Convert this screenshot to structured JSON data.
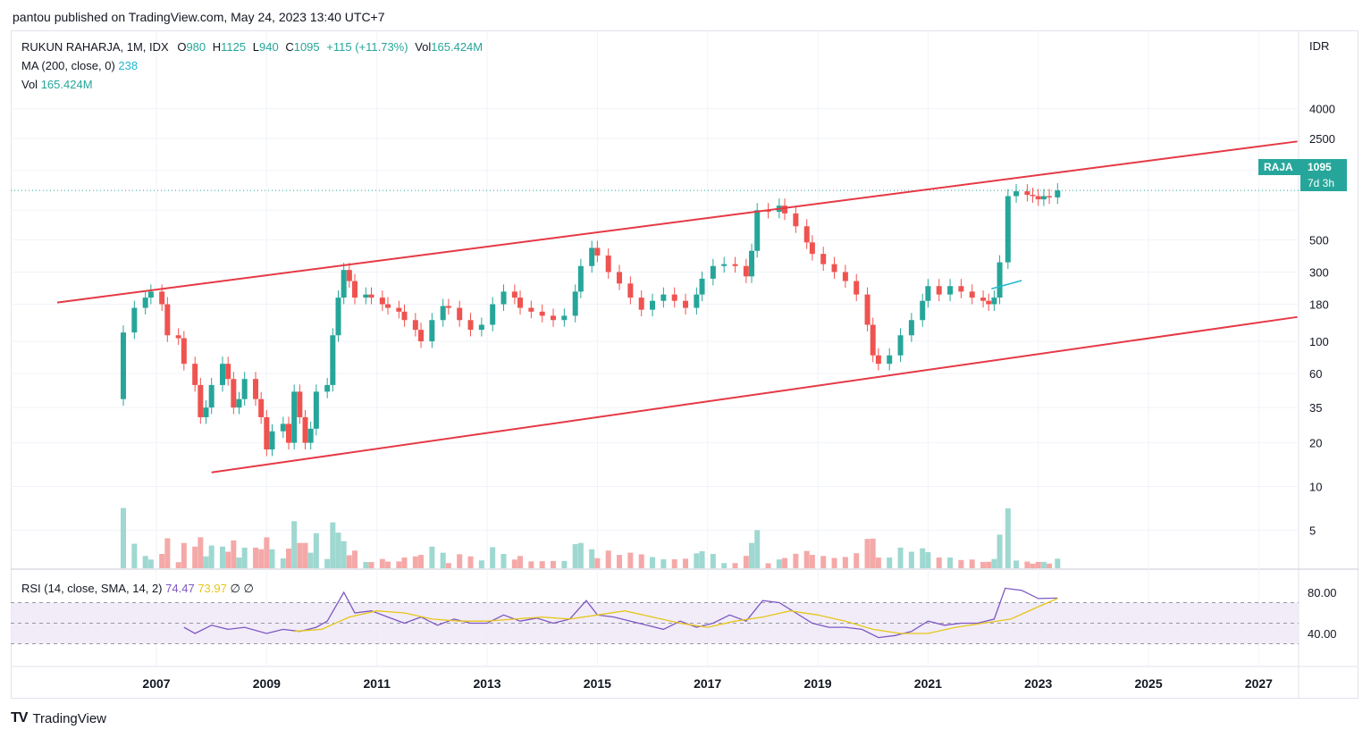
{
  "header": {
    "publisher_line": "pantou published on TradingView.com, May 24, 2023 13:40 UTC+7"
  },
  "legend": {
    "symbol": "RUKUN RAHARJA, 1M, IDX",
    "o_label": "O",
    "o_value": "980",
    "h_label": "H",
    "h_value": "1125",
    "l_label": "L",
    "l_value": "940",
    "c_label": "C",
    "c_value": "1095",
    "change": "+115 (+11.73%)",
    "vol_label": "Vol",
    "vol_value": "165.424M",
    "ma_label": "MA (200, close, 0)",
    "ma_value": "238",
    "vol_row_label": "Vol",
    "vol_row_value": "165.424M"
  },
  "rsi_legend": {
    "label": "RSI (14, close, SMA, 14, 2)",
    "rsi_value": "74.47",
    "sma_value": "73.97",
    "extra1": "∅",
    "extra2": "∅"
  },
  "price_badge": {
    "ticker": "RAJA",
    "price": "1095",
    "countdown": "7d 3h"
  },
  "footer": {
    "brand": "TradingView"
  },
  "colors": {
    "up": "#26a69a",
    "down": "#ef5350",
    "channel": "#e53945",
    "rsi": "#7e57c2",
    "rsi_sma": "#e6c619",
    "ma": "#22b8cf"
  },
  "chart_data": [
    {
      "type": "candlestick",
      "currency_label": "IDR",
      "scale": "log",
      "y_ticks": [
        4000,
        2500,
        1500,
        800,
        500,
        300,
        180,
        100,
        60,
        35,
        20,
        10,
        5
      ],
      "y_tick_labels": [
        "4000",
        "2500",
        "1500",
        "",
        "500",
        "300",
        "180",
        "100",
        "60",
        "35",
        "20",
        "10",
        "5"
      ],
      "x_ticks": [
        "2007",
        "2009",
        "2011",
        "2013",
        "2015",
        "2017",
        "2019",
        "2021",
        "2023",
        "2025",
        "2027"
      ],
      "x_tick_years": [
        2007,
        2009,
        2011,
        2013,
        2015,
        2017,
        2019,
        2021,
        2023,
        2025,
        2027
      ],
      "last_price": 1095,
      "close_series": [
        [
          2006.3,
          40
        ],
        [
          2006.4,
          115
        ],
        [
          2006.6,
          170
        ],
        [
          2006.8,
          200
        ],
        [
          2006.9,
          220
        ],
        [
          2007.1,
          180
        ],
        [
          2007.2,
          110
        ],
        [
          2007.4,
          105
        ],
        [
          2007.5,
          70
        ],
        [
          2007.7,
          50
        ],
        [
          2007.8,
          30
        ],
        [
          2007.9,
          35
        ],
        [
          2008.0,
          50
        ],
        [
          2008.2,
          70
        ],
        [
          2008.3,
          55
        ],
        [
          2008.4,
          35
        ],
        [
          2008.5,
          40
        ],
        [
          2008.6,
          55
        ],
        [
          2008.8,
          40
        ],
        [
          2008.9,
          30
        ],
        [
          2009.0,
          18
        ],
        [
          2009.1,
          24
        ],
        [
          2009.3,
          27
        ],
        [
          2009.4,
          20
        ],
        [
          2009.5,
          45
        ],
        [
          2009.6,
          30
        ],
        [
          2009.7,
          20
        ],
        [
          2009.8,
          25
        ],
        [
          2009.9,
          45
        ],
        [
          2010.1,
          50
        ],
        [
          2010.2,
          110
        ],
        [
          2010.3,
          200
        ],
        [
          2010.4,
          310
        ],
        [
          2010.5,
          260
        ],
        [
          2010.6,
          200
        ],
        [
          2010.8,
          210
        ],
        [
          2010.9,
          200
        ],
        [
          2011.1,
          180
        ],
        [
          2011.2,
          170
        ],
        [
          2011.4,
          160
        ],
        [
          2011.5,
          140
        ],
        [
          2011.7,
          120
        ],
        [
          2011.8,
          100
        ],
        [
          2012.0,
          140
        ],
        [
          2012.2,
          175
        ],
        [
          2012.3,
          170
        ],
        [
          2012.5,
          140
        ],
        [
          2012.7,
          120
        ],
        [
          2012.9,
          130
        ],
        [
          2013.1,
          180
        ],
        [
          2013.3,
          220
        ],
        [
          2013.5,
          200
        ],
        [
          2013.6,
          170
        ],
        [
          2013.8,
          160
        ],
        [
          2014.0,
          150
        ],
        [
          2014.2,
          140
        ],
        [
          2014.4,
          150
        ],
        [
          2014.6,
          220
        ],
        [
          2014.7,
          330
        ],
        [
          2014.9,
          440
        ],
        [
          2015.0,
          390
        ],
        [
          2015.2,
          300
        ],
        [
          2015.4,
          250
        ],
        [
          2015.6,
          200
        ],
        [
          2015.8,
          165
        ],
        [
          2016.0,
          190
        ],
        [
          2016.2,
          210
        ],
        [
          2016.4,
          190
        ],
        [
          2016.6,
          170
        ],
        [
          2016.8,
          210
        ],
        [
          2016.9,
          270
        ],
        [
          2017.1,
          330
        ],
        [
          2017.3,
          340
        ],
        [
          2017.5,
          330
        ],
        [
          2017.7,
          280
        ],
        [
          2017.8,
          420
        ],
        [
          2017.9,
          800
        ],
        [
          2018.1,
          780
        ],
        [
          2018.3,
          860
        ],
        [
          2018.4,
          760
        ],
        [
          2018.6,
          620
        ],
        [
          2018.8,
          480
        ],
        [
          2018.9,
          400
        ],
        [
          2019.1,
          340
        ],
        [
          2019.3,
          300
        ],
        [
          2019.5,
          260
        ],
        [
          2019.7,
          210
        ],
        [
          2019.9,
          130
        ],
        [
          2020.0,
          80
        ],
        [
          2020.1,
          70
        ],
        [
          2020.3,
          80
        ],
        [
          2020.5,
          110
        ],
        [
          2020.7,
          140
        ],
        [
          2020.9,
          190
        ],
        [
          2021.0,
          240
        ],
        [
          2021.2,
          210
        ],
        [
          2021.4,
          240
        ],
        [
          2021.6,
          220
        ],
        [
          2021.8,
          200
        ],
        [
          2022.0,
          190
        ],
        [
          2022.1,
          180
        ],
        [
          2022.2,
          200
        ],
        [
          2022.3,
          350
        ],
        [
          2022.45,
          1000
        ],
        [
          2022.6,
          1080
        ],
        [
          2022.8,
          1020
        ],
        [
          2022.9,
          1000
        ],
        [
          2023.0,
          950
        ],
        [
          2023.1,
          1000
        ],
        [
          2023.2,
          980
        ],
        [
          2023.35,
          1095
        ]
      ],
      "volume_note": "monthly volume histogram (green up / red down months)"
    },
    {
      "type": "line",
      "title": "RSI (14, close, SMA, 14, 2)",
      "y_ticks": [
        80,
        40
      ],
      "y_tick_labels": [
        "80.00",
        "40.00"
      ],
      "band": [
        30,
        70
      ],
      "series": [
        {
          "name": "RSI",
          "x": [
            2007.5,
            2007.7,
            2008.0,
            2008.3,
            2008.6,
            2009.0,
            2009.3,
            2009.6,
            2009.9,
            2010.1,
            2010.4,
            2010.6,
            2010.9,
            2011.2,
            2011.5,
            2011.8,
            2012.1,
            2012.4,
            2012.7,
            2013.0,
            2013.3,
            2013.6,
            2013.9,
            2014.2,
            2014.5,
            2014.8,
            2015.0,
            2015.3,
            2015.6,
            2015.9,
            2016.2,
            2016.5,
            2016.8,
            2017.1,
            2017.4,
            2017.7,
            2018.0,
            2018.3,
            2018.6,
            2018.9,
            2019.2,
            2019.5,
            2019.8,
            2020.1,
            2020.4,
            2020.7,
            2021.0,
            2021.3,
            2021.6,
            2021.9,
            2022.2,
            2022.4,
            2022.7,
            2023.0,
            2023.35
          ],
          "y": [
            46,
            40,
            48,
            44,
            46,
            40,
            44,
            42,
            46,
            52,
            80,
            60,
            62,
            56,
            50,
            56,
            48,
            54,
            50,
            50,
            58,
            52,
            55,
            50,
            54,
            72,
            58,
            56,
            52,
            48,
            44,
            52,
            46,
            50,
            58,
            52,
            72,
            70,
            60,
            50,
            46,
            46,
            44,
            36,
            38,
            42,
            52,
            48,
            50,
            50,
            54,
            84,
            82,
            74,
            74.47
          ]
        },
        {
          "name": "RSI-based MA",
          "x": [
            2009.5,
            2010.0,
            2010.5,
            2011.0,
            2011.5,
            2012.0,
            2012.5,
            2013.0,
            2013.5,
            2014.0,
            2014.5,
            2015.0,
            2015.5,
            2016.0,
            2016.5,
            2017.0,
            2017.5,
            2018.0,
            2018.5,
            2019.0,
            2019.5,
            2020.0,
            2020.5,
            2021.0,
            2021.5,
            2022.0,
            2022.5,
            2023.0,
            2023.35
          ],
          "y": [
            42,
            44,
            56,
            62,
            60,
            54,
            52,
            52,
            54,
            56,
            54,
            58,
            62,
            56,
            50,
            46,
            52,
            56,
            62,
            58,
            52,
            44,
            40,
            40,
            46,
            50,
            54,
            66,
            73.97
          ]
        }
      ]
    }
  ],
  "trendlines": {
    "upper": [
      [
        2005.2,
        185
      ],
      [
        2027.7,
        2380
      ]
    ],
    "lower": [
      [
        2008.0,
        12.5
      ],
      [
        2027.7,
        147
      ]
    ],
    "ma_segment": [
      [
        2022.15,
        230
      ],
      [
        2022.7,
        262
      ]
    ]
  }
}
